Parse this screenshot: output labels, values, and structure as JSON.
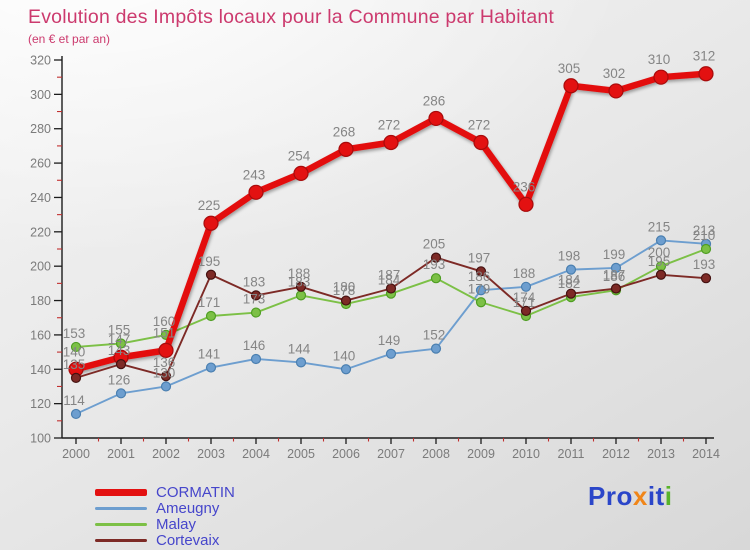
{
  "chart_data": {
    "type": "line",
    "title": "Evolution des Impôts locaux pour la Commune par Habitant",
    "subtitle": "(en € et par an)",
    "title_color": "#cc3a6e",
    "x": [
      2000,
      2001,
      2002,
      2003,
      2004,
      2005,
      2006,
      2007,
      2008,
      2009,
      2010,
      2011,
      2012,
      2013,
      2014
    ],
    "ylim": [
      100,
      320
    ],
    "yticks": [
      100,
      120,
      140,
      160,
      180,
      200,
      220,
      240,
      260,
      280,
      300,
      320
    ],
    "grid": false,
    "legend_position": "bottom-left",
    "series": [
      {
        "name": "CORMATIN",
        "color": "#e31111",
        "dot_stroke": "#a80b0b",
        "thick": true,
        "values": [
          140,
          147,
          151,
          225,
          243,
          254,
          268,
          272,
          286,
          272,
          236,
          305,
          302,
          310,
          312
        ]
      },
      {
        "name": "Ameugny",
        "color": "#6d9ecf",
        "dot_stroke": "#4a7fb0",
        "thick": false,
        "values": [
          114,
          126,
          130,
          141,
          146,
          144,
          140,
          149,
          152,
          186,
          188,
          198,
          199,
          215,
          213
        ]
      },
      {
        "name": "Malay",
        "color": "#7cc046",
        "dot_stroke": "#4f9e23",
        "thick": false,
        "values": [
          153,
          155,
          160,
          171,
          173,
          183,
          178,
          184,
          193,
          179,
          171,
          182,
          186,
          200,
          210
        ]
      },
      {
        "name": "Cortevaix",
        "color": "#7d2a26",
        "dot_stroke": "#451211",
        "thick": false,
        "values": [
          135,
          143,
          136,
          195,
          183,
          188,
          180,
          187,
          205,
          197,
          174,
          184,
          187,
          195,
          193
        ]
      }
    ],
    "point_label_color": "#858585",
    "axis": {
      "line_color": "#1c1c1c",
      "tick_label_color": "#7b7b7b",
      "minor_tick_color": "#c23030"
    }
  },
  "legend": {
    "text_color": "#4646cb"
  },
  "logo": {
    "parts": [
      {
        "text": "Pro",
        "color": "#2b46c9"
      },
      {
        "text": "x",
        "color": "#f08518"
      },
      {
        "text": "it",
        "color": "#2b46c9"
      },
      {
        "text": "i",
        "color": "#58b32a"
      }
    ]
  }
}
